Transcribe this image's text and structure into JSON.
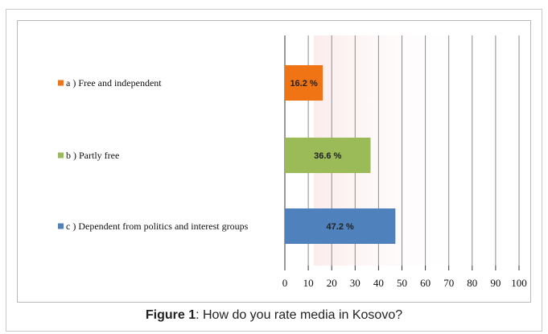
{
  "chart_data": {
    "type": "bar",
    "orientation": "horizontal",
    "categories": [
      "a ) Free and independent",
      "b ) Partly free",
      "c ) Dependent from politics and interest groups"
    ],
    "values": [
      16.2,
      36.6,
      47.2
    ],
    "data_labels": [
      "16.2 %",
      "36.6 %",
      "47.2 %"
    ],
    "colors": [
      "#f07314",
      "#9bbb59",
      "#4f81bd"
    ],
    "xlim": [
      0,
      100
    ],
    "xticks": [
      0,
      10,
      20,
      30,
      40,
      50,
      60,
      70,
      80,
      90,
      100
    ],
    "grid": true,
    "legend": "left"
  },
  "caption": {
    "label": "Figure 1",
    "text": ": How do you rate media in Kosovo?"
  }
}
